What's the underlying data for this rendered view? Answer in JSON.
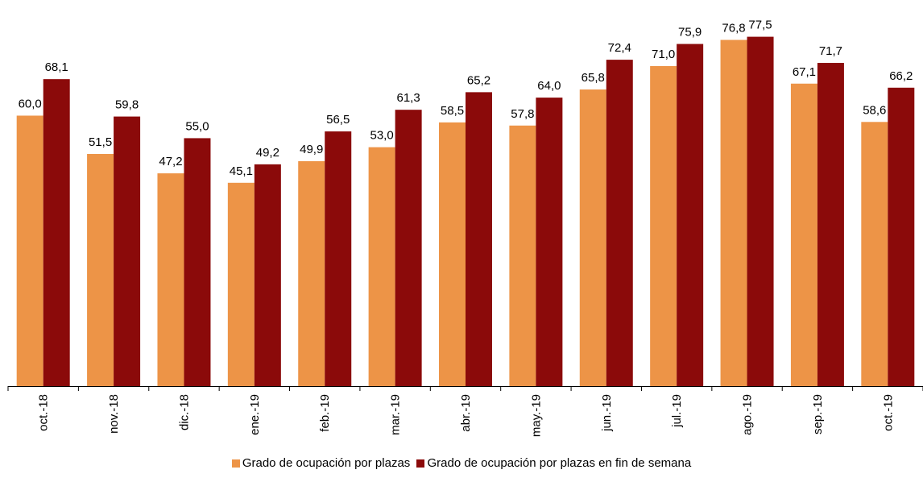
{
  "chart_data": {
    "type": "bar",
    "categories": [
      "oct.-18",
      "nov.-18",
      "dic.-18",
      "ene.-19",
      "feb.-19",
      "mar.-19",
      "abr.-19",
      "may.-19",
      "jun.-19",
      "jul.-19",
      "ago.-19",
      "sep.-19",
      "oct.-19"
    ],
    "series": [
      {
        "name": "Grado de ocupación por plazas",
        "color": "#ED9447",
        "values": [
          60.0,
          51.5,
          47.2,
          45.1,
          49.9,
          53.0,
          58.5,
          57.8,
          65.8,
          71.0,
          76.8,
          67.1,
          58.6
        ],
        "labels": [
          "60,0",
          "51,5",
          "47,2",
          "45,1",
          "49,9",
          "53,0",
          "58,5",
          "57,8",
          "65,8",
          "71,0",
          "76,8",
          "67,1",
          "58,6"
        ]
      },
      {
        "name": "Grado de ocupación por plazas en fin de semana",
        "color": "#8B0A0A",
        "values": [
          68.1,
          59.8,
          55.0,
          49.2,
          56.5,
          61.3,
          65.2,
          64.0,
          72.4,
          75.9,
          77.5,
          71.7,
          66.2
        ],
        "labels": [
          "68,1",
          "59,8",
          "55,0",
          "49,2",
          "56,5",
          "61,3",
          "65,2",
          "64,0",
          "72,4",
          "75,9",
          "77,5",
          "71,7",
          "66,2"
        ]
      }
    ],
    "ylim": [
      0,
      78.5
    ],
    "grid": false,
    "legend_position": "bottom"
  }
}
